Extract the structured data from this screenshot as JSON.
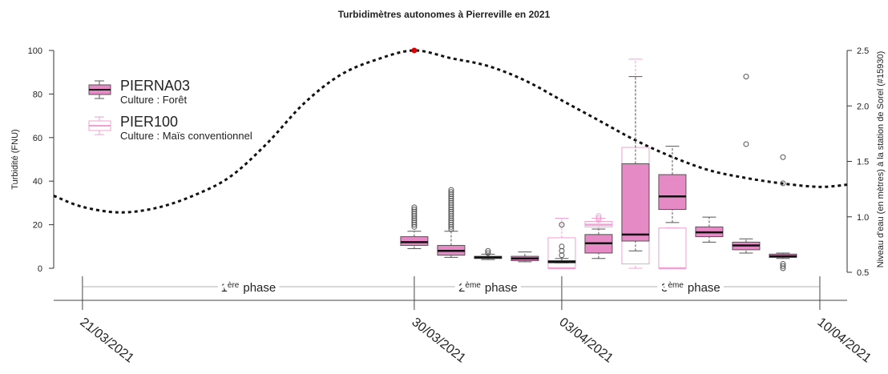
{
  "chart_data": {
    "type": "box",
    "title": "Turbidimètres autonomes à Pierreville en 2021",
    "ylabel": "Turbidité (FNU)",
    "y2label": "Niveau d'eau (en mètres) à la station de Sorel (#15930)",
    "xlim": [
      -0.78,
      20.74
    ],
    "xticks": [
      {
        "value": 0,
        "label": "21/03/2021"
      },
      {
        "value": 9,
        "label": "30/03/2021"
      },
      {
        "value": 13,
        "label": "03/04/2021"
      },
      {
        "value": 20,
        "label": "10/04/2021"
      }
    ],
    "ylim": [
      0,
      100
    ],
    "yticks": [
      0,
      20,
      40,
      60,
      80,
      100
    ],
    "y2lim": [
      0.5,
      2.5
    ],
    "y2ticks": [
      0.5,
      {
        "value": 1,
        "label": "1.0"
      },
      1.5,
      {
        "value": 2,
        "label": "2.0"
      },
      2.5
    ],
    "phases": [
      {
        "number": "1",
        "sup": "ère",
        "text": "phase"
      },
      {
        "number": "2",
        "sup": "ème",
        "text": "phase"
      },
      {
        "number": "3",
        "sup": "ème",
        "text": "phase"
      }
    ],
    "series": [
      {
        "name": "PIERNA03",
        "culture": "Culture : Forêt",
        "color": "#e68ac6",
        "style": "filled",
        "boxes": [
          {
            "x": 9,
            "whislo": 9,
            "q1": 10.5,
            "med": 12,
            "q3": 14.5,
            "whishi": 17,
            "fliers": [
              19,
              20,
              21,
              22,
              23,
              24,
              25,
              26,
              27,
              28
            ]
          },
          {
            "x": 10,
            "whislo": 5,
            "q1": 6,
            "med": 8,
            "q3": 10.5,
            "whishi": 17,
            "fliers": [
              18,
              19,
              20,
              21,
              22,
              23,
              24,
              25,
              26,
              27,
              28,
              29,
              30,
              31,
              32,
              33,
              34,
              35,
              36
            ]
          },
          {
            "x": 11,
            "whislo": 4,
            "q1": 4.5,
            "med": 5,
            "q3": 5.5,
            "whishi": 6.5,
            "fliers": [
              7,
              8
            ]
          },
          {
            "x": 12,
            "whislo": 3,
            "q1": 3.5,
            "med": 4.5,
            "q3": 5.5,
            "whishi": 7.5,
            "fliers": []
          },
          {
            "x": 13,
            "whislo": 2.5,
            "q1": 2.5,
            "med": 3,
            "q3": 3.5,
            "whishi": 4.5,
            "fliers": [
              6,
              8,
              10,
              20
            ]
          },
          {
            "x": 14,
            "whislo": 4.5,
            "q1": 7,
            "med": 11.5,
            "q3": 15.5,
            "whishi": 18,
            "fliers": []
          },
          {
            "x": 15,
            "whislo": 8,
            "q1": 12.5,
            "med": 15.5,
            "q3": 48,
            "whishi": 88,
            "fliers": []
          },
          {
            "x": 16,
            "whislo": 21,
            "q1": 27,
            "med": 33,
            "q3": 43,
            "whishi": 56,
            "fliers": []
          },
          {
            "x": 17,
            "whislo": 12,
            "q1": 14.5,
            "med": 16.5,
            "q3": 19,
            "whishi": 23.5,
            "fliers": []
          },
          {
            "x": 18,
            "whislo": 7,
            "q1": 8.5,
            "med": 10.5,
            "q3": 12,
            "whishi": 13.5,
            "fliers": [
              57,
              88
            ]
          },
          {
            "x": 19,
            "whislo": 4.5,
            "q1": 5,
            "med": 5.5,
            "q3": 6.5,
            "whishi": 7,
            "fliers": [
              0,
              1,
              2,
              39,
              51
            ]
          }
        ]
      },
      {
        "name": "PIER100",
        "culture": "Culture : Maïs conventionnel",
        "color": "#f0a0d2",
        "style": "outline",
        "boxes": [
          {
            "x": 13,
            "whislo": 0,
            "q1": 0,
            "med": 0,
            "q3": 14,
            "whishi": 23,
            "fliers": []
          },
          {
            "x": 14,
            "whislo": 18,
            "q1": 19,
            "med": 20,
            "q3": 21.5,
            "whishi": 23,
            "fliers": [
              22,
              23,
              24
            ]
          },
          {
            "x": 15,
            "whislo": 0,
            "q1": 2,
            "med": 16,
            "q3": 55.5,
            "whishi": 96,
            "fliers": []
          },
          {
            "x": 16,
            "whislo": 0,
            "q1": 0,
            "med": 0,
            "q3": 18.5,
            "whishi": 18.5,
            "fliers": []
          }
        ]
      }
    ],
    "line": {
      "axis": "y2",
      "color": "#111111",
      "style": "dotted",
      "highlight_index": 10,
      "highlight_color": "#e00000",
      "x": [
        -0.78,
        0,
        1,
        2,
        3,
        4,
        5,
        6,
        7,
        8,
        9,
        10,
        11,
        12,
        13,
        14,
        15,
        16,
        17,
        18,
        19,
        20,
        20.74
      ],
      "values": [
        1.19,
        1.09,
        1.04,
        1.08,
        1.19,
        1.36,
        1.66,
        2.02,
        2.28,
        2.42,
        2.5,
        2.43,
        2.36,
        2.23,
        2.05,
        1.87,
        1.69,
        1.54,
        1.42,
        1.35,
        1.3,
        1.27,
        1.29
      ]
    }
  }
}
